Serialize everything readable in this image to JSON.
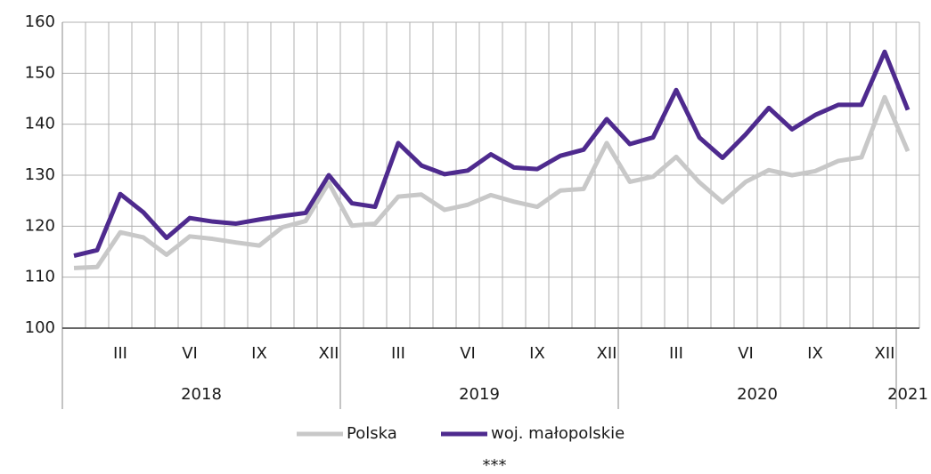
{
  "chart_data": {
    "type": "line",
    "categories": [
      null,
      null,
      "III",
      null,
      null,
      "VI",
      null,
      null,
      "IX",
      null,
      null,
      "XII",
      null,
      null,
      "III",
      null,
      null,
      "VI",
      null,
      null,
      "IX",
      null,
      null,
      "XII",
      null,
      null,
      "III",
      null,
      null,
      "VI",
      null,
      null,
      "IX",
      null,
      null,
      "XII",
      null
    ],
    "years": [
      "2018",
      "2019",
      "2020",
      "2021"
    ],
    "series": [
      {
        "name": "Polska",
        "color": "#c8c8c8",
        "values": [
          111.8,
          112.0,
          118.8,
          117.8,
          114.4,
          118.0,
          117.5,
          116.8,
          116.2,
          119.8,
          121.0,
          128.5,
          120.1,
          120.5,
          125.8,
          126.2,
          123.2,
          124.2,
          126.1,
          124.8,
          123.8,
          127.0,
          127.3,
          136.3,
          128.7,
          129.7,
          133.6,
          128.6,
          124.7,
          128.7,
          131.0,
          130.0,
          130.8,
          132.8,
          133.5,
          145.3,
          134.7
        ]
      },
      {
        "name": "woj. małopolskie",
        "color": "#4e2a8e",
        "values": [
          114.2,
          115.3,
          126.3,
          122.7,
          117.7,
          121.6,
          120.9,
          120.5,
          121.3,
          122.0,
          122.6,
          130.0,
          124.5,
          123.8,
          136.3,
          131.9,
          130.2,
          130.9,
          134.1,
          131.5,
          131.2,
          133.8,
          135.0,
          141.0,
          136.1,
          137.4,
          146.7,
          137.4,
          133.4,
          138.0,
          143.2,
          139.0,
          141.8,
          143.8,
          143.8,
          154.2,
          142.8
        ]
      }
    ],
    "ylim": [
      100,
      160
    ],
    "yticks": [
      100,
      110,
      120,
      130,
      140,
      150,
      160
    ],
    "grid": true,
    "legend": "bottom",
    "footnote": "***"
  }
}
